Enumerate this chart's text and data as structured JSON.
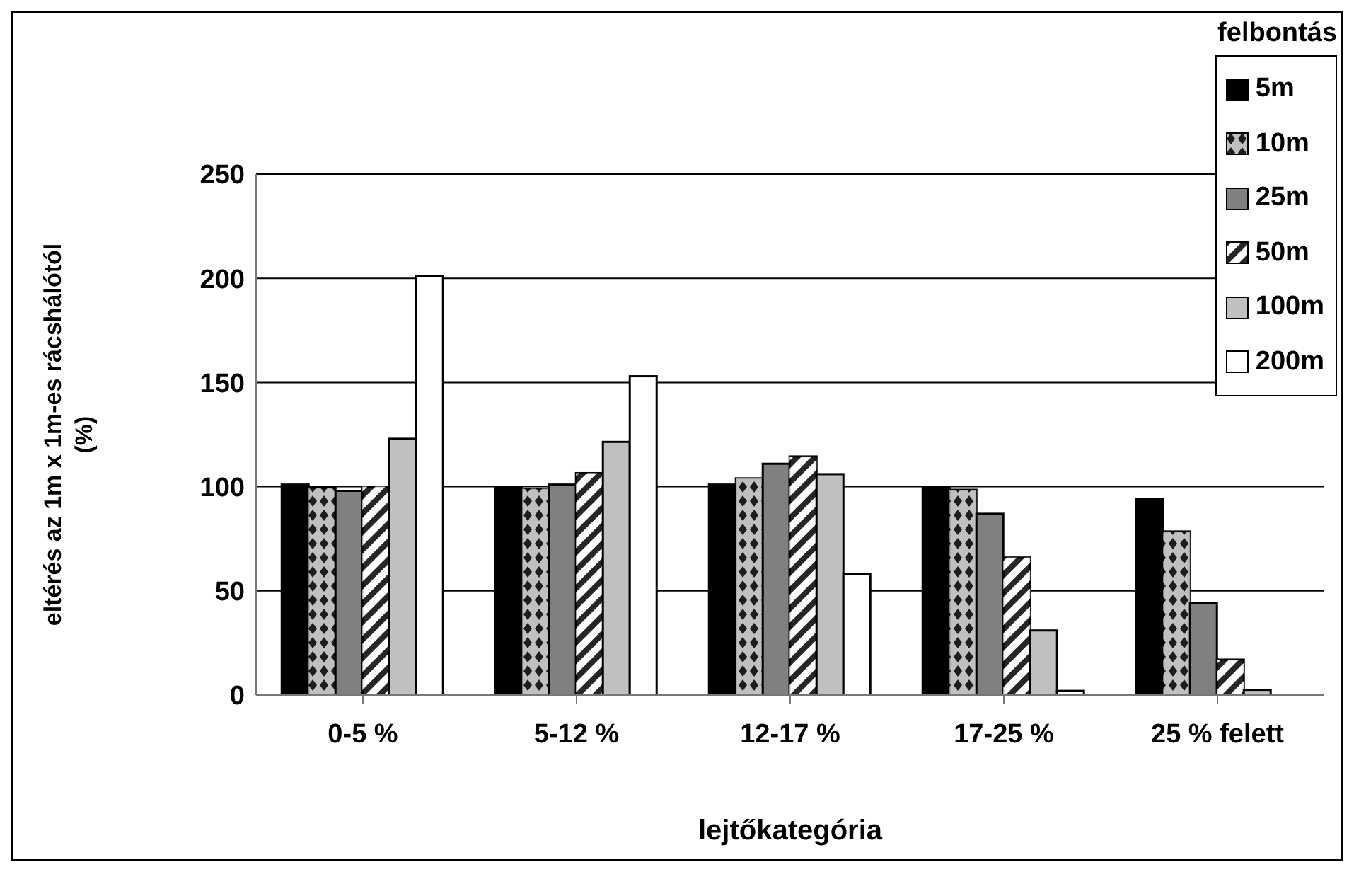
{
  "chart_data": {
    "type": "bar",
    "xlabel": "lejtőkategória",
    "ylabel": "eltérés az 1m x 1m-es rácshálótól\n(%)",
    "legend_title": "felbontás",
    "legend": "top right",
    "grid": "y",
    "categories": [
      "0-5 %",
      "5-12 %",
      "12-17 %",
      "17-25 %",
      "25 % felett"
    ],
    "ylim": [
      0,
      250
    ],
    "yticks": [
      0,
      50,
      100,
      150,
      200,
      250
    ],
    "series": [
      {
        "name": "5m",
        "color": "#000000",
        "values": [
          101,
          99.5,
          101,
          100,
          94
        ]
      },
      {
        "name": "10m",
        "color": "#c0c0c0",
        "values": [
          99.5,
          99,
          104,
          98.5,
          78.5
        ]
      },
      {
        "name": "25m",
        "color": "#808080",
        "values": [
          98,
          101,
          111,
          87,
          44
        ]
      },
      {
        "name": "50m",
        "color": "#ffffff",
        "values": [
          100,
          106.5,
          114.5,
          66,
          17
        ]
      },
      {
        "name": "100m",
        "color": "#c0c0c0",
        "values": [
          123,
          121.5,
          106,
          31,
          2.5
        ]
      },
      {
        "name": "200m",
        "color": "#ffffff",
        "values": [
          201,
          153,
          58,
          2,
          null
        ]
      }
    ]
  }
}
